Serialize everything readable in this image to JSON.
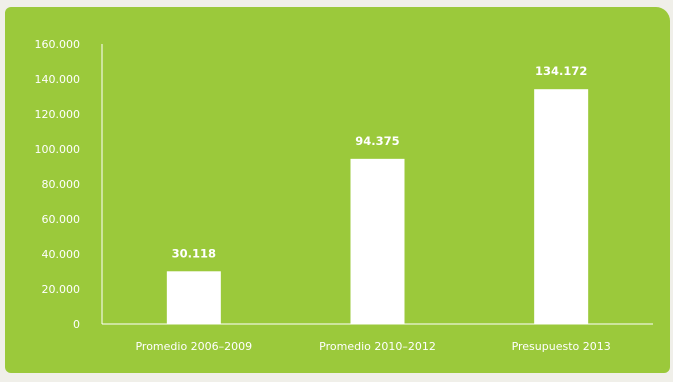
{
  "colors": {
    "panel": "#9bc93b",
    "bar": "#ffffff",
    "axis": "#ffffff",
    "text": "#ffffff",
    "page": "#f0efe9"
  },
  "chart_data": {
    "type": "bar",
    "title": "",
    "xlabel": "",
    "ylabel": "",
    "categories": [
      "Promedio 2006–2009",
      "Promedio 2010–2012",
      "Presupuesto 2013"
    ],
    "values": [
      30118,
      94375,
      134172
    ],
    "value_labels": [
      "30.118",
      "94.375",
      "134.172"
    ],
    "ylim": [
      0,
      160000
    ],
    "y_ticks": [
      0,
      20000,
      40000,
      60000,
      80000,
      100000,
      120000,
      140000,
      160000
    ],
    "y_tick_labels": [
      "0",
      "20.000",
      "40.000",
      "60.000",
      "80.000",
      "100.000",
      "120.000",
      "140.000",
      "160.000"
    ],
    "grid": false,
    "legend": "none"
  }
}
